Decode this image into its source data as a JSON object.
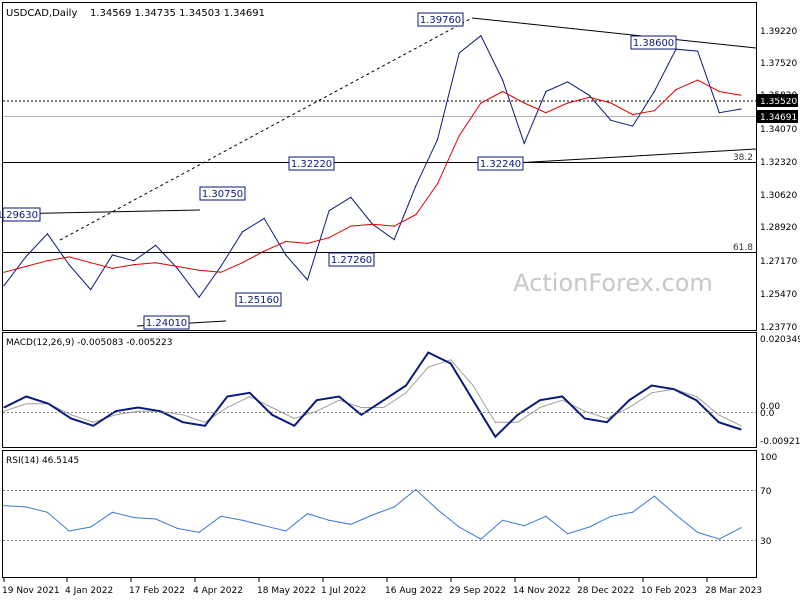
{
  "header": {
    "symbol": "USDCAD,Daily",
    "ohlc": "1.34569 1.34735 1.34503 1.34691"
  },
  "watermark": "ActionForex.com",
  "colors": {
    "price": "#0b1a7a",
    "sma": "#e00000",
    "signal": "#a0a0a0",
    "line": "#000000",
    "label_border": "#0b1a7a"
  },
  "chart_data": [
    {
      "type": "line",
      "title": "USDCAD,Daily",
      "subtitle": "1.34569 1.34735 1.34503 1.34691",
      "x_tick_labels": [
        "19 Nov 2021",
        "4 Jan 2022",
        "17 Feb 2022",
        "4 Apr 2022",
        "18 May 2022",
        "1 Jul 2022",
        "16 Aug 2022",
        "29 Sep 2022",
        "14 Nov 2022",
        "28 Dec 2022",
        "10 Feb 2023",
        "28 Mar 2023"
      ],
      "y_tick_labels": [
        "1.39220",
        "1.37520",
        "1.35820",
        "1.34070",
        "1.32320",
        "1.30620",
        "1.28920",
        "1.27170",
        "1.25470",
        "1.23770"
      ],
      "ylim": [
        1.2325,
        1.4015
      ],
      "x": [
        "2021-11-19",
        "2021-12-03",
        "2021-12-17",
        "2022-01-04",
        "2022-01-20",
        "2022-02-03",
        "2022-02-17",
        "2022-03-03",
        "2022-03-17",
        "2022-04-04",
        "2022-04-20",
        "2022-05-04",
        "2022-05-18",
        "2022-06-02",
        "2022-06-16",
        "2022-07-01",
        "2022-07-15",
        "2022-08-01",
        "2022-08-16",
        "2022-08-30",
        "2022-09-13",
        "2022-09-29",
        "2022-10-13",
        "2022-10-27",
        "2022-11-14",
        "2022-11-28",
        "2022-12-12",
        "2022-12-28",
        "2023-01-11",
        "2023-01-26",
        "2023-02-10",
        "2023-02-24",
        "2023-03-10",
        "2023-03-28",
        "2023-04-05"
      ],
      "series": [
        {
          "values": [
            1.255,
            1.27,
            1.282,
            1.266,
            1.253,
            1.271,
            1.268,
            1.276,
            1.264,
            1.249,
            1.265,
            1.283,
            1.29,
            1.271,
            1.258,
            1.294,
            1.301,
            1.287,
            1.279,
            1.307,
            1.331,
            1.376,
            1.385,
            1.362,
            1.329,
            1.356,
            1.361,
            1.354,
            1.341,
            1.338,
            1.356,
            1.378,
            1.377,
            1.345,
            1.3469
          ]
        },
        {
          "values": [
            1.262,
            1.265,
            1.268,
            1.27,
            1.267,
            1.264,
            1.266,
            1.267,
            1.265,
            1.263,
            1.262,
            1.267,
            1.273,
            1.278,
            1.277,
            1.28,
            1.286,
            1.287,
            1.286,
            1.292,
            1.308,
            1.333,
            1.35,
            1.356,
            1.35,
            1.345,
            1.35,
            1.353,
            1.35,
            1.344,
            1.346,
            1.357,
            1.362,
            1.356,
            1.354
          ]
        }
      ],
      "levels": [
        "1.35520",
        "1.34691"
      ],
      "annotations": [
        "1.39760",
        "1.38600",
        "1.32240",
        "1.32220",
        "1.30750",
        "1.29630",
        "1.27260",
        "1.25160",
        "1.24010"
      ],
      "fib_labels": [
        "38.2",
        "61.8"
      ]
    },
    {
      "type": "line",
      "title": "MACD(12,26,9) -0.005083 -0.005223",
      "y_tick_labels": [
        "0.020349",
        "0.00",
        "0.0",
        "-0.009215"
      ],
      "ylim": [
        -0.0095,
        0.0205
      ],
      "series": [
        {
          "values": [
            0.001,
            0.004,
            0.002,
            -0.002,
            -0.004,
            0.0,
            0.001,
            0.0,
            -0.003,
            -0.004,
            0.004,
            0.005,
            -0.001,
            -0.004,
            0.003,
            0.004,
            -0.001,
            0.003,
            0.007,
            0.016,
            0.013,
            0.003,
            -0.007,
            -0.001,
            0.003,
            0.004,
            -0.002,
            -0.003,
            0.003,
            0.007,
            0.006,
            0.003,
            -0.003,
            -0.005
          ]
        },
        {
          "values": [
            0.0,
            0.002,
            0.002,
            -0.001,
            -0.003,
            -0.001,
            0.0,
            0.0,
            -0.001,
            -0.003,
            0.001,
            0.004,
            0.001,
            -0.002,
            0.0,
            0.003,
            0.001,
            0.001,
            0.005,
            0.012,
            0.014,
            0.007,
            -0.003,
            -0.003,
            0.001,
            0.003,
            0.0,
            -0.002,
            0.001,
            0.005,
            0.006,
            0.004,
            -0.001,
            -0.004
          ]
        }
      ]
    },
    {
      "type": "line",
      "title": "RSI(14) 46.5145",
      "y_tick_labels": [
        "100",
        "70",
        "30"
      ],
      "ylim": [
        0,
        100
      ],
      "series": [
        {
          "values": [
            63,
            62,
            58,
            44,
            47,
            58,
            54,
            53,
            46,
            43,
            55,
            52,
            48,
            44,
            57,
            52,
            49,
            56,
            62,
            75,
            60,
            47,
            38,
            52,
            48,
            55,
            42,
            47,
            55,
            58,
            70,
            56,
            43,
            38,
            46.5145
          ]
        }
      ]
    }
  ]
}
